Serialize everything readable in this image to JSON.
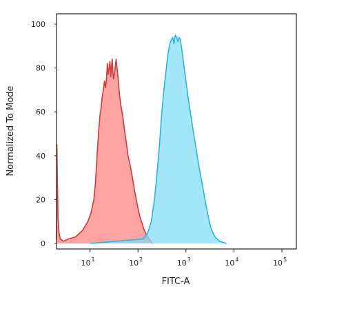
{
  "chart_data": {
    "type": "area",
    "xlabel": "FITC-A",
    "ylabel": "Normalized To Mode",
    "x_scale": "log",
    "xlim": [
      2,
      200000
    ],
    "ylim": [
      0,
      100
    ],
    "x_ticks": [
      {
        "base": "10",
        "exp": "1",
        "value": 10
      },
      {
        "base": "10",
        "exp": "2",
        "value": 100
      },
      {
        "base": "10",
        "exp": "3",
        "value": 1000
      },
      {
        "base": "10",
        "exp": "4",
        "value": 10000
      },
      {
        "base": "10",
        "exp": "5",
        "value": 100000
      }
    ],
    "y_ticks": [
      "0",
      "20",
      "40",
      "60",
      "80",
      "100"
    ],
    "y_tick_values": [
      0,
      20,
      40,
      60,
      80,
      100
    ],
    "grid": false,
    "legend": "none",
    "series": [
      {
        "color": "#d23a3a",
        "fill": "#ff8080",
        "points": [
          [
            2,
            2
          ],
          [
            2.04,
            45
          ],
          [
            2.08,
            30
          ],
          [
            2.15,
            12
          ],
          [
            2.25,
            5
          ],
          [
            2.4,
            2
          ],
          [
            2.8,
            1
          ],
          [
            3.5,
            2
          ],
          [
            5,
            3
          ],
          [
            7,
            6
          ],
          [
            9,
            10
          ],
          [
            10.5,
            14
          ],
          [
            12,
            20
          ],
          [
            13,
            28
          ],
          [
            14,
            40
          ],
          [
            15,
            50
          ],
          [
            16,
            58
          ],
          [
            17,
            62
          ],
          [
            18,
            67
          ],
          [
            19,
            70
          ],
          [
            20,
            74
          ],
          [
            21,
            71
          ],
          [
            22,
            75
          ],
          [
            23,
            82
          ],
          [
            24,
            77
          ],
          [
            25,
            80
          ],
          [
            26,
            83
          ],
          [
            27,
            76
          ],
          [
            28,
            81
          ],
          [
            29,
            84
          ],
          [
            30,
            78
          ],
          [
            31,
            75
          ],
          [
            33,
            79
          ],
          [
            35,
            84
          ],
          [
            37,
            79
          ],
          [
            39,
            74
          ],
          [
            41,
            68
          ],
          [
            44,
            63
          ],
          [
            48,
            58
          ],
          [
            52,
            52
          ],
          [
            57,
            46
          ],
          [
            62,
            40
          ],
          [
            68,
            36
          ],
          [
            75,
            31
          ],
          [
            82,
            26
          ],
          [
            90,
            21
          ],
          [
            100,
            16
          ],
          [
            110,
            12
          ],
          [
            122,
            9
          ],
          [
            135,
            6
          ],
          [
            150,
            4
          ],
          [
            170,
            2
          ],
          [
            200,
            0
          ]
        ]
      },
      {
        "color": "#29b6d8",
        "fill": "#7fdcf8",
        "points": [
          [
            10,
            0
          ],
          [
            130,
            2
          ],
          [
            160,
            5
          ],
          [
            190,
            10
          ],
          [
            220,
            20
          ],
          [
            250,
            32
          ],
          [
            280,
            45
          ],
          [
            310,
            58
          ],
          [
            340,
            68
          ],
          [
            380,
            78
          ],
          [
            420,
            86
          ],
          [
            460,
            91
          ],
          [
            500,
            93
          ],
          [
            530,
            94
          ],
          [
            560,
            91
          ],
          [
            600,
            95
          ],
          [
            640,
            94
          ],
          [
            680,
            92
          ],
          [
            720,
            94
          ],
          [
            760,
            93
          ],
          [
            800,
            90
          ],
          [
            850,
            86
          ],
          [
            920,
            80
          ],
          [
            1000,
            74
          ],
          [
            1100,
            67
          ],
          [
            1250,
            59
          ],
          [
            1400,
            52
          ],
          [
            1600,
            44
          ],
          [
            1800,
            37
          ],
          [
            2100,
            29
          ],
          [
            2400,
            22
          ],
          [
            2800,
            14
          ],
          [
            3300,
            7
          ],
          [
            4000,
            3
          ],
          [
            5000,
            1
          ],
          [
            7000,
            0
          ]
        ]
      }
    ]
  }
}
